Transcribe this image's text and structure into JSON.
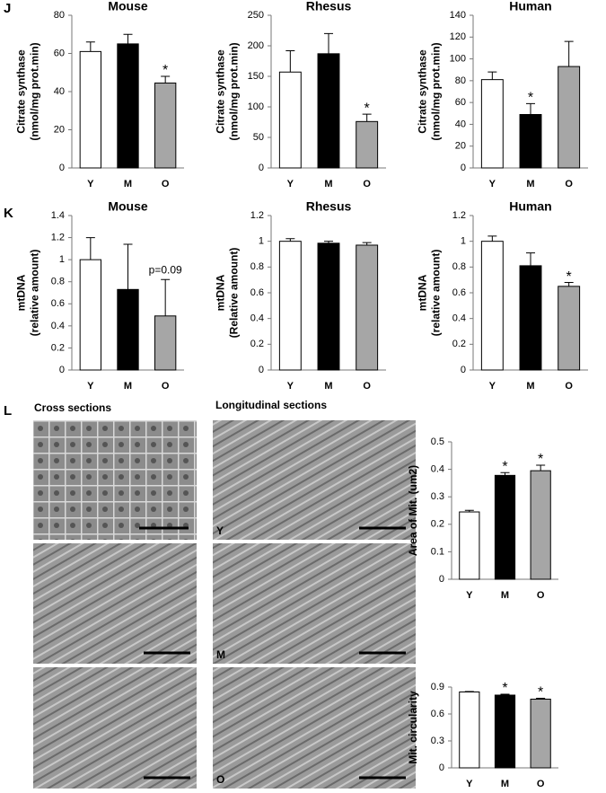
{
  "panels": [
    "J",
    "K",
    "L"
  ],
  "sections": [
    "Cross sections",
    "Longitudinal sections"
  ],
  "image_labels": [
    "Y",
    "M",
    "O"
  ],
  "chart_data": [
    {
      "type": "bar",
      "title": "Mouse",
      "ylabel": [
        "Citrate synthase",
        "(nmol/mg prot.min)"
      ],
      "categories": [
        "Y",
        "M",
        "O"
      ],
      "values": [
        61,
        65,
        44.5
      ],
      "errors": [
        5,
        5,
        3.5
      ],
      "colors": [
        "#ffffff",
        "#000000",
        "#a6a6a6"
      ],
      "significance": [
        null,
        null,
        "*"
      ],
      "ylim": [
        0,
        80
      ],
      "yticks": [
        0,
        20,
        40,
        60,
        80
      ]
    },
    {
      "type": "bar",
      "title": "Rhesus",
      "ylabel": [
        "Citrate synthase",
        "(nmol/mg prot.min)"
      ],
      "categories": [
        "Y",
        "M",
        "O"
      ],
      "values": [
        157,
        187,
        76
      ],
      "errors": [
        35,
        33,
        12
      ],
      "colors": [
        "#ffffff",
        "#000000",
        "#a6a6a6"
      ],
      "significance": [
        null,
        null,
        "*"
      ],
      "ylim": [
        0,
        250
      ],
      "yticks": [
        0,
        50,
        100,
        150,
        200,
        250
      ]
    },
    {
      "type": "bar",
      "title": "Human",
      "ylabel": [
        "Citrate synthase",
        "(nmol/mg prot.min)"
      ],
      "categories": [
        "Y",
        "M",
        "O"
      ],
      "values": [
        81,
        49,
        93
      ],
      "errors": [
        7,
        10,
        23
      ],
      "colors": [
        "#ffffff",
        "#000000",
        "#a6a6a6"
      ],
      "significance": [
        null,
        "*",
        null
      ],
      "ylim": [
        0,
        140
      ],
      "yticks": [
        0,
        20,
        40,
        60,
        80,
        100,
        120,
        140
      ]
    },
    {
      "type": "bar",
      "title": "Mouse",
      "ylabel": [
        "mtDNA",
        "(relative amount)"
      ],
      "categories": [
        "Y",
        "M",
        "O"
      ],
      "values": [
        1.0,
        0.73,
        0.49
      ],
      "errors": [
        0.2,
        0.41,
        0.33
      ],
      "colors": [
        "#ffffff",
        "#000000",
        "#a6a6a6"
      ],
      "significance": [
        null,
        null,
        "p=0.09"
      ],
      "ylim": [
        0,
        1.4
      ],
      "yticks": [
        0,
        0.2,
        0.4,
        0.6,
        0.8,
        1,
        1.2,
        1.4
      ]
    },
    {
      "type": "bar",
      "title": "Rhesus",
      "ylabel": [
        "mtDNA",
        "(Relative amount)"
      ],
      "categories": [
        "Y",
        "M",
        "O"
      ],
      "values": [
        1.0,
        0.985,
        0.97
      ],
      "errors": [
        0.02,
        0.015,
        0.02
      ],
      "colors": [
        "#ffffff",
        "#000000",
        "#a6a6a6"
      ],
      "significance": [
        null,
        null,
        null
      ],
      "ylim": [
        0,
        1.2
      ],
      "yticks": [
        0,
        0.2,
        0.4,
        0.6,
        0.8,
        1,
        1.2
      ]
    },
    {
      "type": "bar",
      "title": "Human",
      "ylabel": [
        "mtDNA",
        "(relative amount)"
      ],
      "categories": [
        "Y",
        "M",
        "O"
      ],
      "values": [
        1.0,
        0.81,
        0.65
      ],
      "errors": [
        0.04,
        0.1,
        0.03
      ],
      "colors": [
        "#ffffff",
        "#000000",
        "#a6a6a6"
      ],
      "significance": [
        null,
        null,
        "*"
      ],
      "ylim": [
        0,
        1.2
      ],
      "yticks": [
        0,
        0.2,
        0.4,
        0.6,
        0.8,
        1,
        1.2
      ]
    },
    {
      "type": "bar",
      "ylabel": [
        "Area of Mit. (um2)"
      ],
      "categories": [
        "Y",
        "M",
        "O"
      ],
      "values": [
        0.245,
        0.378,
        0.395
      ],
      "errors": [
        0.006,
        0.01,
        0.02
      ],
      "colors": [
        "#ffffff",
        "#000000",
        "#a6a6a6"
      ],
      "significance": [
        null,
        "*",
        "*"
      ],
      "ylim": [
        0,
        0.5
      ],
      "yticks": [
        0,
        0.1,
        0.2,
        0.3,
        0.4,
        0.5
      ]
    },
    {
      "type": "bar",
      "ylabel": [
        "Mit. circularity"
      ],
      "categories": [
        "Y",
        "M",
        "O"
      ],
      "values": [
        0.845,
        0.81,
        0.765
      ],
      "errors": [
        0.005,
        0.01,
        0.01
      ],
      "colors": [
        "#ffffff",
        "#000000",
        "#a6a6a6"
      ],
      "significance": [
        null,
        "*",
        "*"
      ],
      "ylim": [
        0,
        0.9
      ],
      "yticks": [
        0,
        0.3,
        0.6,
        0.9
      ]
    }
  ]
}
